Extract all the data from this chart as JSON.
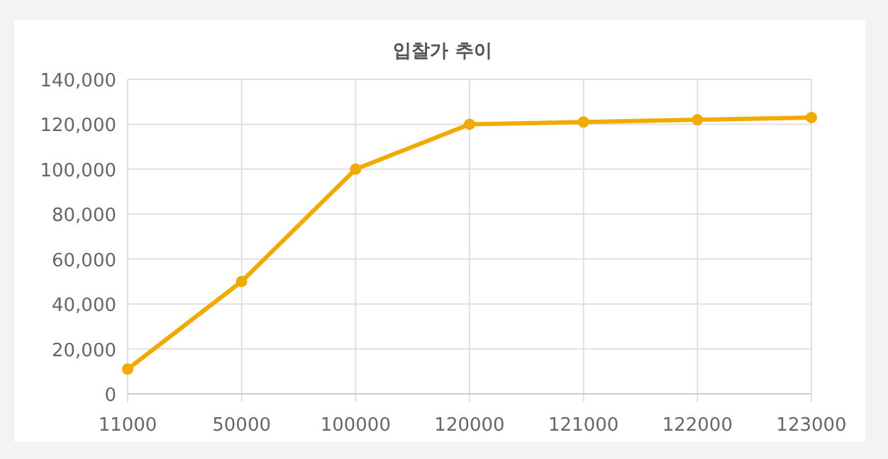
{
  "chart_data": {
    "type": "line",
    "title": "입찰가 추이",
    "categories": [
      "11000",
      "50000",
      "100000",
      "120000",
      "121000",
      "122000",
      "123000"
    ],
    "values": [
      11000,
      50000,
      100000,
      120000,
      121000,
      122000,
      123000
    ],
    "color": "#f2a900",
    "ylim": [
      0,
      140000
    ],
    "yticks": [
      {
        "value": 0,
        "label": "0"
      },
      {
        "value": 20000,
        "label": "20,000"
      },
      {
        "value": 40000,
        "label": "40,000"
      },
      {
        "value": 60000,
        "label": "60,000"
      },
      {
        "value": 80000,
        "label": "80,000"
      },
      {
        "value": 100000,
        "label": "100,000"
      },
      {
        "value": 120000,
        "label": "120,000"
      },
      {
        "value": 140000,
        "label": "140,000"
      }
    ],
    "grid": true,
    "marker": "circle",
    "line_style": "solid"
  }
}
